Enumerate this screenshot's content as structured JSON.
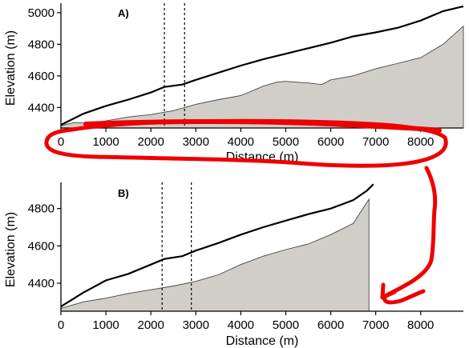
{
  "chart_data": [
    {
      "panel_label": "A)",
      "type": "area",
      "xlabel": "Distance (m)",
      "ylabel": "Elevation (m)",
      "xlim": [
        0,
        8950
      ],
      "ylim": [
        4270,
        5060
      ],
      "xticks": [
        0,
        1000,
        2000,
        3000,
        4000,
        5000,
        6000,
        7000,
        8000
      ],
      "yticks": [
        4400,
        4600,
        4800,
        5000
      ],
      "grid": false,
      "series": [
        {
          "role": "upper-line",
          "x": [
            0,
            500,
            1000,
            1500,
            2000,
            2300,
            2700,
            3000,
            3500,
            4000,
            4500,
            5000,
            5500,
            6000,
            6500,
            7000,
            7500,
            8000,
            8500,
            8950
          ],
          "y": [
            4290,
            4360,
            4410,
            4450,
            4495,
            4530,
            4545,
            4575,
            4620,
            4665,
            4705,
            4740,
            4775,
            4810,
            4850,
            4875,
            4905,
            4950,
            5010,
            5040
          ]
        },
        {
          "role": "lower-area",
          "x": [
            0,
            300,
            600,
            1000,
            1500,
            2000,
            2500,
            3000,
            3500,
            4000,
            4500,
            4800,
            5000,
            5500,
            5800,
            6000,
            6500,
            7000,
            7500,
            8000,
            8500,
            8950
          ],
          "y": [
            4285,
            4305,
            4300,
            4315,
            4340,
            4355,
            4380,
            4420,
            4450,
            4475,
            4535,
            4560,
            4565,
            4555,
            4545,
            4575,
            4600,
            4645,
            4680,
            4715,
            4800,
            4915
          ]
        }
      ],
      "vlines": [
        2300,
        2750
      ]
    },
    {
      "panel_label": "B)",
      "type": "area",
      "xlabel": "Distance (m)",
      "ylabel": "Elevation (m)",
      "xlim": [
        0,
        8950
      ],
      "ylim": [
        4250,
        4940
      ],
      "xticks": [
        0,
        1000,
        2000,
        3000,
        4000,
        5000,
        6000,
        7000,
        8000
      ],
      "yticks": [
        4400,
        4600,
        4800
      ],
      "grid": false,
      "series": [
        {
          "role": "upper-line",
          "x": [
            0,
            500,
            1000,
            1500,
            2000,
            2300,
            2700,
            3000,
            3500,
            4000,
            4500,
            5000,
            5500,
            6000,
            6500,
            6800,
            6950
          ],
          "y": [
            4275,
            4350,
            4415,
            4450,
            4500,
            4530,
            4545,
            4575,
            4615,
            4660,
            4700,
            4735,
            4770,
            4800,
            4845,
            4895,
            4930
          ]
        },
        {
          "role": "lower-area",
          "x": [
            0,
            500,
            1000,
            1500,
            2000,
            2500,
            3000,
            3500,
            4000,
            4500,
            5000,
            5500,
            6000,
            6500,
            6850
          ],
          "y": [
            4265,
            4300,
            4320,
            4345,
            4365,
            4385,
            4410,
            4445,
            4500,
            4545,
            4580,
            4610,
            4660,
            4720,
            4850
          ]
        }
      ],
      "vlines": [
        2250,
        2900
      ]
    }
  ],
  "annotation": {
    "color": "#ee0000",
    "shapes": [
      "red-scribble-underline",
      "red-ellipse-around-axis",
      "red-arrow-curve"
    ]
  }
}
